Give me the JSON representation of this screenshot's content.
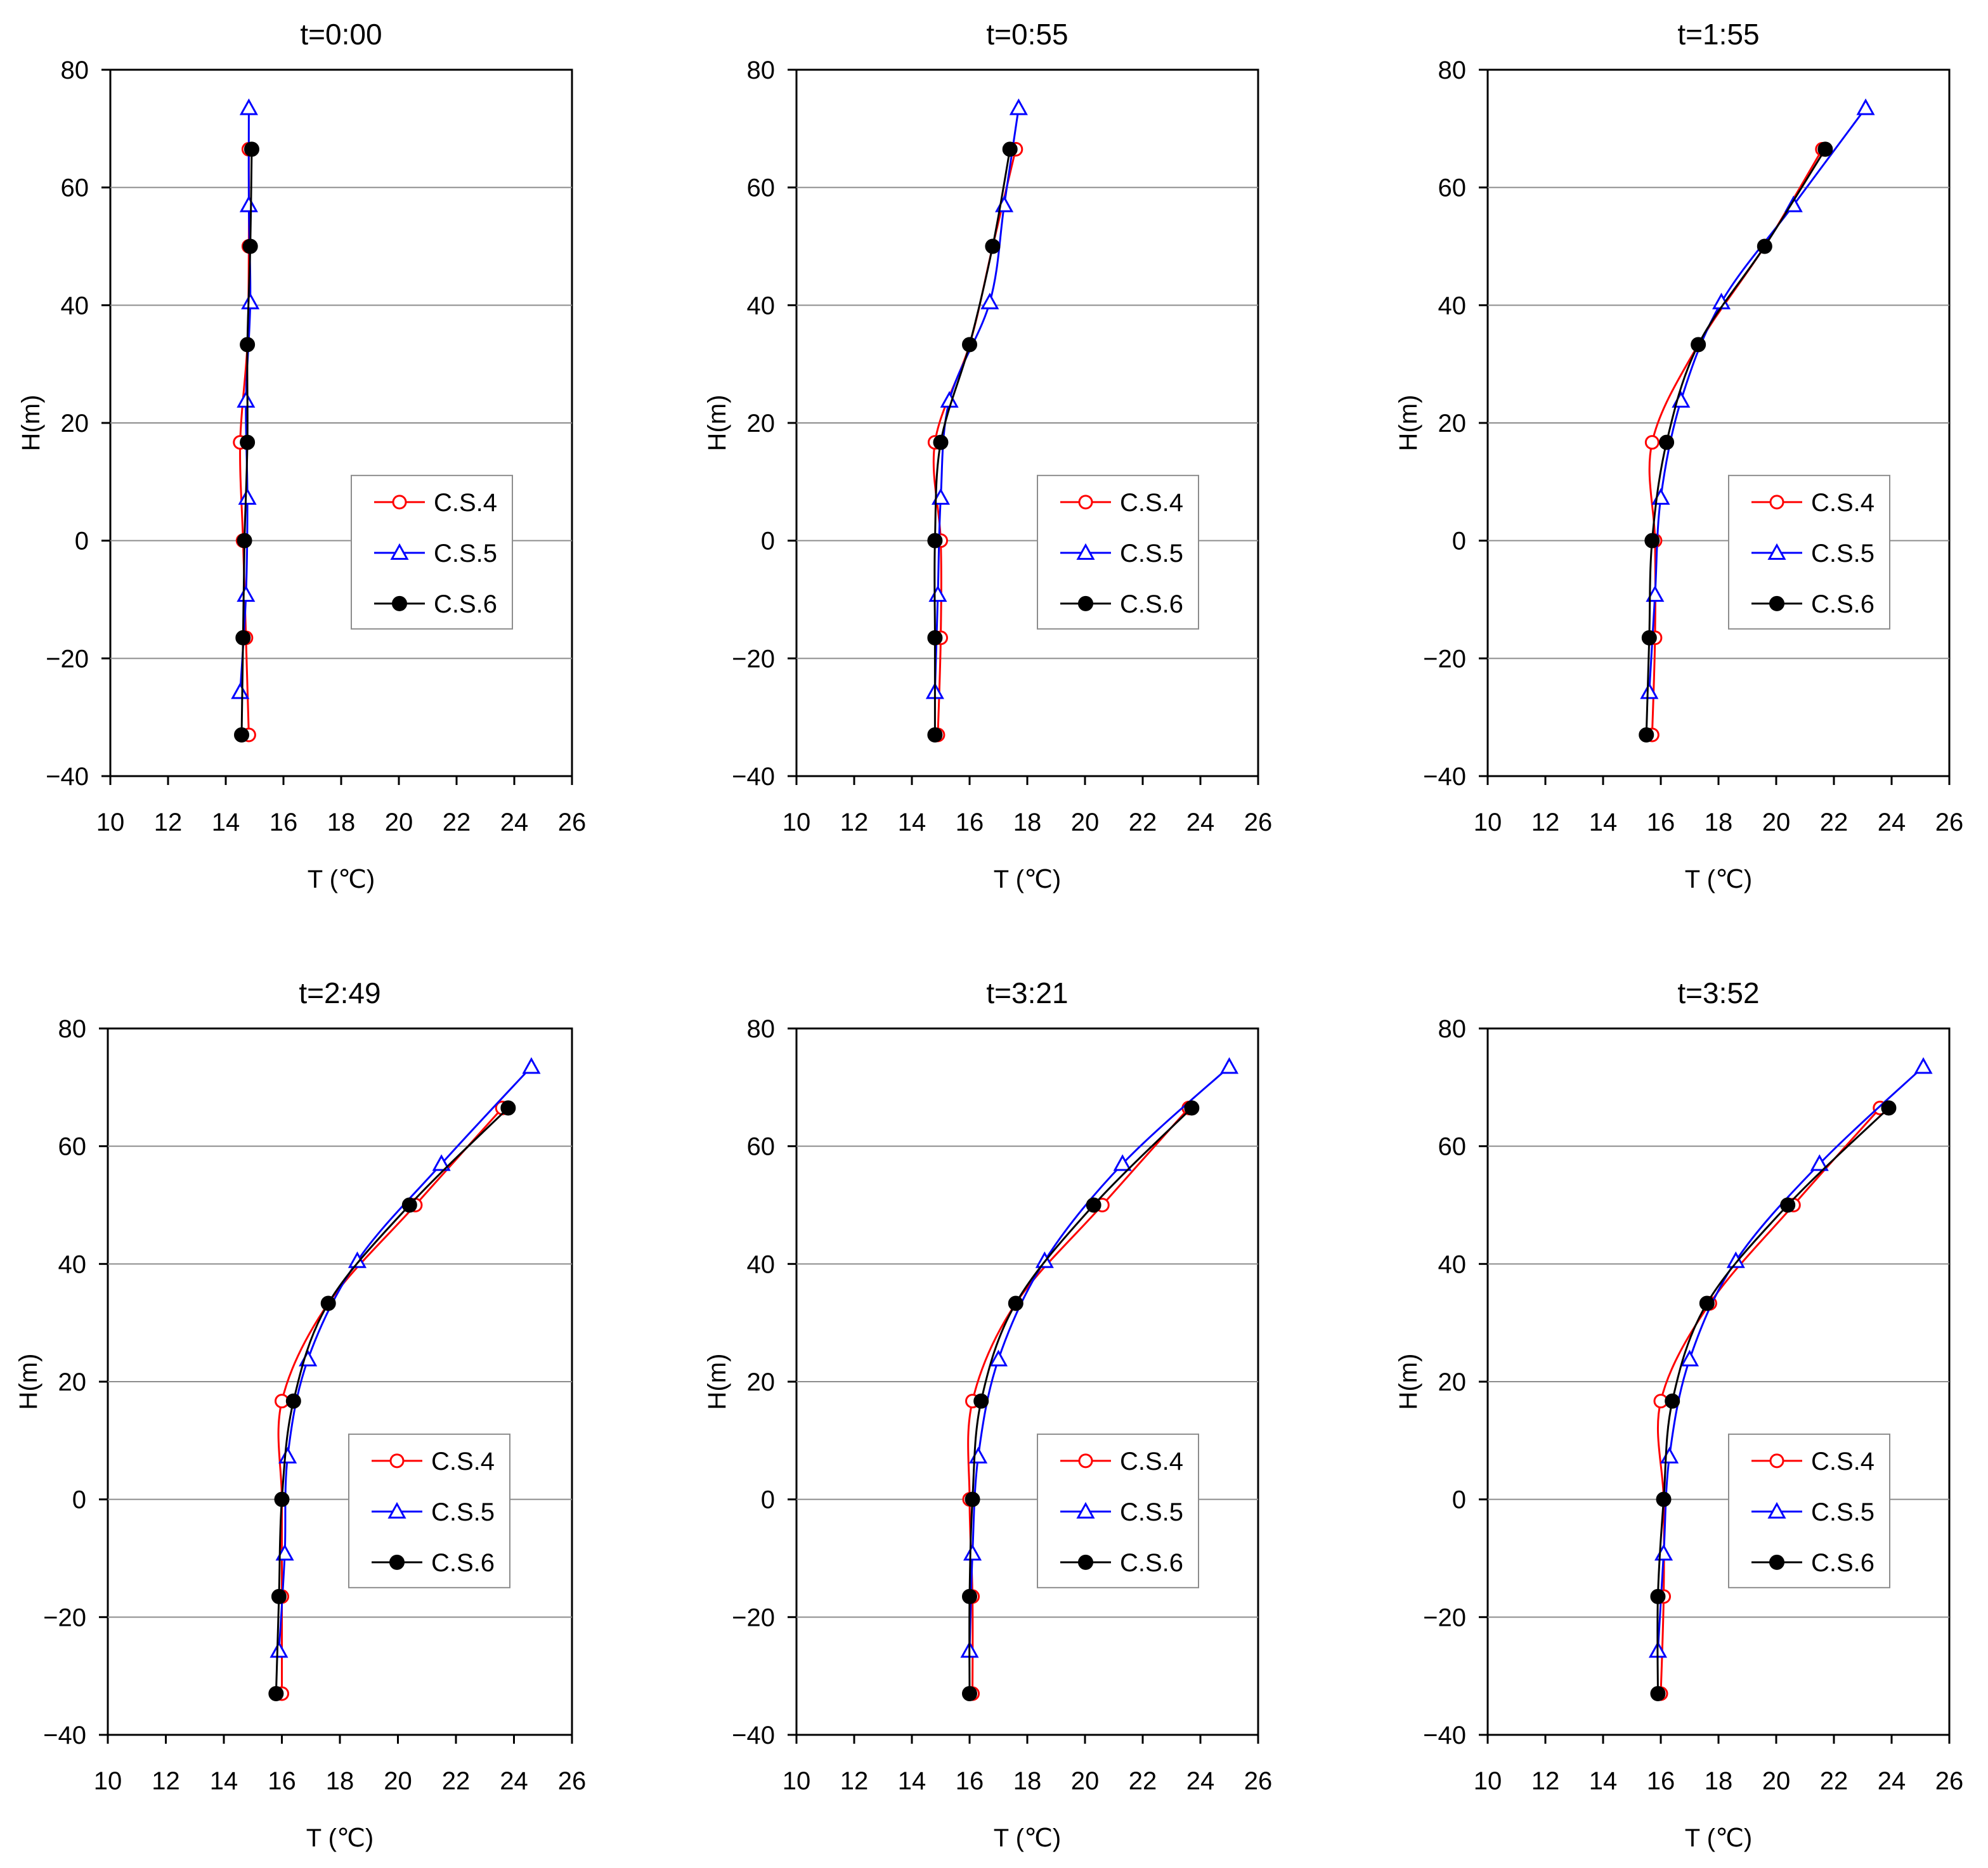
{
  "chart_data": [
    {
      "type": "line",
      "title": "t=0:00",
      "xlabel": "T (℃)",
      "ylabel": "H(m)",
      "xlim": [
        10,
        26
      ],
      "ylim": [
        -40,
        80
      ],
      "xticks": [
        "10",
        "12",
        "14",
        "16",
        "18",
        "20",
        "22",
        "24",
        "26"
      ],
      "yticks": [
        "80",
        "60",
        "40",
        "20",
        "0",
        "−20",
        "−40"
      ],
      "grid": "horizontal",
      "legend": "right-middle",
      "series": [
        {
          "name": "C.S.4",
          "color": "#ff0000",
          "marker": "open-circle",
          "points": [
            [
              14.8,
              66.5
            ],
            [
              14.8,
              50
            ],
            [
              14.75,
              33.3
            ],
            [
              14.5,
              16.7
            ],
            [
              14.6,
              0
            ],
            [
              14.7,
              -16.5
            ],
            [
              14.8,
              -33
            ]
          ]
        },
        {
          "name": "C.S.5",
          "color": "#0000ff",
          "marker": "open-triangle",
          "points": [
            [
              14.8,
              73.5
            ],
            [
              14.8,
              57
            ],
            [
              14.85,
              40.5
            ],
            [
              14.7,
              23.8
            ],
            [
              14.75,
              7.3
            ],
            [
              14.7,
              -9.2
            ],
            [
              14.5,
              -25.7
            ]
          ]
        },
        {
          "name": "C.S.6",
          "color": "#000000",
          "marker": "filled-circle",
          "points": [
            [
              14.9,
              66.5
            ],
            [
              14.85,
              50
            ],
            [
              14.75,
              33.3
            ],
            [
              14.75,
              16.7
            ],
            [
              14.65,
              0
            ],
            [
              14.6,
              -16.5
            ],
            [
              14.55,
              -33
            ]
          ]
        }
      ]
    },
    {
      "type": "line",
      "title": "t=0:55",
      "xlabel": "T (℃)",
      "ylabel": "H(m)",
      "xlim": [
        10,
        26
      ],
      "ylim": [
        -40,
        80
      ],
      "xticks": [
        "10",
        "12",
        "14",
        "16",
        "18",
        "20",
        "22",
        "24",
        "26"
      ],
      "yticks": [
        "80",
        "60",
        "40",
        "20",
        "0",
        "−20",
        "−40"
      ],
      "grid": "horizontal",
      "legend": "right-middle",
      "series": [
        {
          "name": "C.S.4",
          "color": "#ff0000",
          "marker": "open-circle",
          "points": [
            [
              17.6,
              66.5
            ],
            [
              16.8,
              50
            ],
            [
              16,
              33.3
            ],
            [
              14.8,
              16.7
            ],
            [
              15,
              0
            ],
            [
              15,
              -16.5
            ],
            [
              14.9,
              -33
            ]
          ]
        },
        {
          "name": "C.S.5",
          "color": "#0000ff",
          "marker": "open-triangle",
          "points": [
            [
              17.7,
              73.5
            ],
            [
              17.2,
              57
            ],
            [
              16.7,
              40.5
            ],
            [
              15.3,
              23.8
            ],
            [
              15,
              7.3
            ],
            [
              14.9,
              -9.2
            ],
            [
              14.8,
              -25.7
            ]
          ]
        },
        {
          "name": "C.S.6",
          "color": "#000000",
          "marker": "filled-circle",
          "points": [
            [
              17.4,
              66.5
            ],
            [
              16.8,
              50
            ],
            [
              16,
              33.3
            ],
            [
              15,
              16.7
            ],
            [
              14.8,
              0
            ],
            [
              14.8,
              -16.5
            ],
            [
              14.8,
              -33
            ]
          ]
        }
      ]
    },
    {
      "type": "line",
      "title": "t=1:55",
      "xlabel": "T (℃)",
      "ylabel": "H(m)",
      "xlim": [
        10,
        26
      ],
      "ylim": [
        -40,
        80
      ],
      "xticks": [
        "10",
        "12",
        "14",
        "16",
        "18",
        "20",
        "22",
        "24",
        "26"
      ],
      "yticks": [
        "80",
        "60",
        "40",
        "20",
        "0",
        "−20",
        "−40"
      ],
      "grid": "horizontal",
      "legend": "right-middle",
      "series": [
        {
          "name": "C.S.4",
          "color": "#ff0000",
          "marker": "open-circle",
          "points": [
            [
              21.6,
              66.5
            ],
            [
              19.6,
              50
            ],
            [
              17.3,
              33.3
            ],
            [
              15.7,
              16.7
            ],
            [
              15.8,
              0
            ],
            [
              15.8,
              -16.5
            ],
            [
              15.7,
              -33
            ]
          ]
        },
        {
          "name": "C.S.5",
          "color": "#0000ff",
          "marker": "open-triangle",
          "points": [
            [
              23.1,
              73.5
            ],
            [
              20.6,
              57
            ],
            [
              18.1,
              40.5
            ],
            [
              16.7,
              23.8
            ],
            [
              16,
              7.3
            ],
            [
              15.8,
              -9.2
            ],
            [
              15.6,
              -25.7
            ]
          ]
        },
        {
          "name": "C.S.6",
          "color": "#000000",
          "marker": "filled-circle",
          "points": [
            [
              21.7,
              66.5
            ],
            [
              19.6,
              50
            ],
            [
              17.3,
              33.3
            ],
            [
              16.2,
              16.7
            ],
            [
              15.7,
              0
            ],
            [
              15.6,
              -16.5
            ],
            [
              15.5,
              -33
            ]
          ]
        }
      ]
    },
    {
      "type": "line",
      "title": "t=2:49",
      "xlabel": "T (℃)",
      "ylabel": "H(m)",
      "xlim": [
        10,
        26
      ],
      "ylim": [
        -40,
        80
      ],
      "xticks": [
        "10",
        "12",
        "14",
        "16",
        "18",
        "20",
        "22",
        "24",
        "26"
      ],
      "yticks": [
        "80",
        "60",
        "40",
        "20",
        "0",
        "−20",
        "−40"
      ],
      "grid": "horizontal",
      "legend": "right-middle",
      "series": [
        {
          "name": "C.S.4",
          "color": "#ff0000",
          "marker": "open-circle",
          "points": [
            [
              23.6,
              66.5
            ],
            [
              20.6,
              50
            ],
            [
              17.6,
              33.3
            ],
            [
              16,
              16.7
            ],
            [
              16,
              0
            ],
            [
              16,
              -16.5
            ],
            [
              16,
              -33
            ]
          ]
        },
        {
          "name": "C.S.5",
          "color": "#0000ff",
          "marker": "open-triangle",
          "points": [
            [
              24.6,
              73.5
            ],
            [
              21.5,
              57
            ],
            [
              18.6,
              40.5
            ],
            [
              16.9,
              23.8
            ],
            [
              16.2,
              7.3
            ],
            [
              16.1,
              -9.2
            ],
            [
              15.9,
              -25.7
            ]
          ]
        },
        {
          "name": "C.S.6",
          "color": "#000000",
          "marker": "filled-circle",
          "points": [
            [
              23.8,
              66.5
            ],
            [
              20.4,
              50
            ],
            [
              17.6,
              33.3
            ],
            [
              16.4,
              16.7
            ],
            [
              16,
              0
            ],
            [
              15.9,
              -16.5
            ],
            [
              15.8,
              -33
            ]
          ]
        }
      ]
    },
    {
      "type": "line",
      "title": "t=3:21",
      "xlabel": "T (℃)",
      "ylabel": "H(m)",
      "xlim": [
        10,
        26
      ],
      "ylim": [
        -40,
        80
      ],
      "xticks": [
        "10",
        "12",
        "14",
        "16",
        "18",
        "20",
        "22",
        "24",
        "26"
      ],
      "yticks": [
        "80",
        "60",
        "40",
        "20",
        "0",
        "−20",
        "−40"
      ],
      "grid": "horizontal",
      "legend": "right-middle",
      "series": [
        {
          "name": "C.S.4",
          "color": "#ff0000",
          "marker": "open-circle",
          "points": [
            [
              23.6,
              66.5
            ],
            [
              20.6,
              50
            ],
            [
              17.6,
              33.3
            ],
            [
              16.1,
              16.7
            ],
            [
              16,
              0
            ],
            [
              16.1,
              -16.5
            ],
            [
              16.1,
              -33
            ]
          ]
        },
        {
          "name": "C.S.5",
          "color": "#0000ff",
          "marker": "open-triangle",
          "points": [
            [
              25,
              73.5
            ],
            [
              21.3,
              57
            ],
            [
              18.6,
              40.5
            ],
            [
              17,
              23.8
            ],
            [
              16.3,
              7.3
            ],
            [
              16.1,
              -9.2
            ],
            [
              16,
              -25.7
            ]
          ]
        },
        {
          "name": "C.S.6",
          "color": "#000000",
          "marker": "filled-circle",
          "points": [
            [
              23.7,
              66.5
            ],
            [
              20.3,
              50
            ],
            [
              17.6,
              33.3
            ],
            [
              16.4,
              16.7
            ],
            [
              16.1,
              0
            ],
            [
              16,
              -16.5
            ],
            [
              16,
              -33
            ]
          ]
        }
      ]
    },
    {
      "type": "line",
      "title": "t=3:52",
      "xlabel": "T (℃)",
      "ylabel": "H(m)",
      "xlim": [
        10,
        26
      ],
      "ylim": [
        -40,
        80
      ],
      "xticks": [
        "10",
        "12",
        "14",
        "16",
        "18",
        "20",
        "22",
        "24",
        "26"
      ],
      "yticks": [
        "80",
        "60",
        "40",
        "20",
        "0",
        "−20",
        "−40"
      ],
      "grid": "horizontal",
      "legend": "right-middle",
      "series": [
        {
          "name": "C.S.4",
          "color": "#ff0000",
          "marker": "open-circle",
          "points": [
            [
              23.6,
              66.5
            ],
            [
              20.6,
              50
            ],
            [
              17.7,
              33.3
            ],
            [
              16,
              16.7
            ],
            [
              16.1,
              0
            ],
            [
              16.1,
              -16.5
            ],
            [
              16,
              -33
            ]
          ]
        },
        {
          "name": "C.S.5",
          "color": "#0000ff",
          "marker": "open-triangle",
          "points": [
            [
              25.1,
              73.5
            ],
            [
              21.5,
              57
            ],
            [
              18.6,
              40.5
            ],
            [
              17,
              23.8
            ],
            [
              16.3,
              7.3
            ],
            [
              16.1,
              -9.2
            ],
            [
              15.9,
              -25.7
            ]
          ]
        },
        {
          "name": "C.S.6",
          "color": "#000000",
          "marker": "filled-circle",
          "points": [
            [
              23.9,
              66.5
            ],
            [
              20.4,
              50
            ],
            [
              17.6,
              33.3
            ],
            [
              16.4,
              16.7
            ],
            [
              16.1,
              0
            ],
            [
              15.9,
              -16.5
            ],
            [
              15.9,
              -33
            ]
          ]
        }
      ]
    }
  ]
}
